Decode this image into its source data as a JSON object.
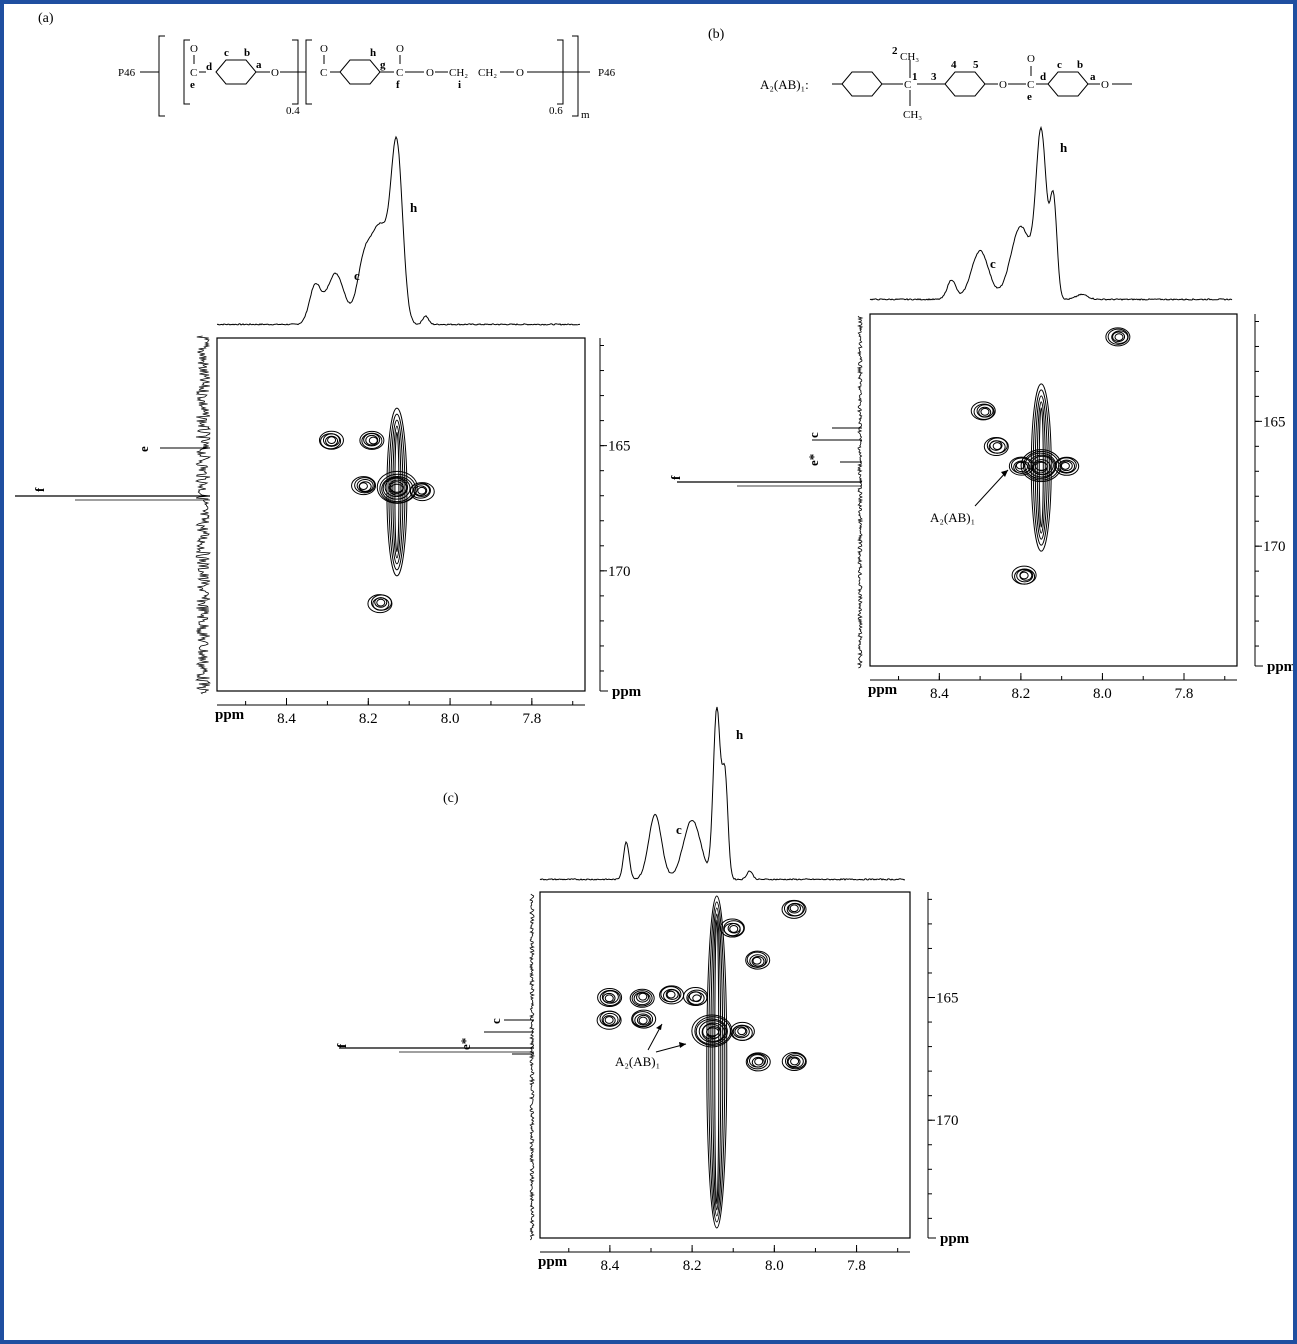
{
  "panels": [
    {
      "id": "a",
      "letter": "(a)",
      "structure": {
        "end_group": "P46",
        "atoms": [
          "O",
          "C",
          "e",
          "d",
          "c",
          "b",
          "a",
          "O",
          "O",
          "C",
          "h",
          "g",
          "O",
          "C",
          "f",
          "O",
          "CH₂",
          "i",
          "CH₂",
          "O"
        ],
        "subscripts": [
          "0.4",
          "0.6",
          "m"
        ]
      },
      "top_peaks": [
        "c",
        "h"
      ],
      "side_peaks": [
        "e",
        "f"
      ],
      "x_ticks": [
        "8.4",
        "8.2",
        "8.0",
        "7.8"
      ],
      "x_unit": "ppm",
      "y_ticks": [
        "165",
        "170"
      ],
      "y_unit": "ppm",
      "annotation": ""
    },
    {
      "id": "b",
      "letter": "(b)",
      "structure": {
        "prefix": "A₂(AB)₁:",
        "atoms": [
          "2",
          "CH₃",
          "1",
          "C",
          "CH₃",
          "3",
          "4",
          "5",
          "O",
          "O",
          "C",
          "e",
          "d",
          "c",
          "b",
          "a",
          "O"
        ]
      },
      "top_peaks": [
        "c",
        "h"
      ],
      "side_peaks": [
        "c",
        "e*",
        "f"
      ],
      "x_ticks": [
        "8.4",
        "8.2",
        "8.0",
        "7.8"
      ],
      "x_unit": "ppm",
      "y_ticks": [
        "165",
        "170"
      ],
      "y_unit": "ppm",
      "annotation": "A₂(AB)₁"
    },
    {
      "id": "c",
      "letter": "(c)",
      "top_peaks": [
        "c",
        "h"
      ],
      "side_peaks": [
        "c",
        "e*",
        "f"
      ],
      "x_ticks": [
        "8.4",
        "8.2",
        "8.0",
        "7.8"
      ],
      "x_unit": "ppm",
      "y_ticks": [
        "165",
        "170"
      ],
      "y_unit": "ppm",
      "annotation": "A₂(AB)₁"
    }
  ],
  "chart_data": [
    {
      "type": "heatmap",
      "title": "",
      "xlabel": "ppm",
      "ylabel": "ppm",
      "xlim": [
        8.57,
        7.67
      ],
      "ylim": [
        174.8,
        160.7
      ],
      "x_ticks": [
        8.4,
        8.2,
        8.0,
        7.8
      ],
      "y_ticks": [
        165,
        170
      ],
      "peaks": [
        {
          "x": 8.29,
          "y": 164.8
        },
        {
          "x": 8.19,
          "y": 164.8
        },
        {
          "x": 8.21,
          "y": 166.6
        },
        {
          "x": 8.13,
          "y": 166.7
        },
        {
          "x": 8.07,
          "y": 166.8
        },
        {
          "x": 8.17,
          "y": 171.3
        }
      ],
      "projection_labels": {
        "x": [
          "c",
          "h"
        ],
        "y": [
          "e",
          "f"
        ]
      }
    },
    {
      "type": "heatmap",
      "title": "",
      "xlabel": "ppm",
      "ylabel": "ppm",
      "xlim": [
        8.57,
        7.67
      ],
      "ylim": [
        174.8,
        160.7
      ],
      "x_ticks": [
        8.4,
        8.2,
        8.0,
        7.8
      ],
      "y_ticks": [
        165,
        170
      ],
      "peaks": [
        {
          "x": 8.29,
          "y": 164.6
        },
        {
          "x": 8.26,
          "y": 166.0
        },
        {
          "x": 8.2,
          "y": 166.8
        },
        {
          "x": 8.15,
          "y": 166.8
        },
        {
          "x": 8.09,
          "y": 166.8
        },
        {
          "x": 7.96,
          "y": 161.6
        },
        {
          "x": 8.19,
          "y": 171.2
        }
      ],
      "projection_labels": {
        "x": [
          "c",
          "h"
        ],
        "y": [
          "c",
          "e*",
          "f"
        ]
      }
    },
    {
      "type": "heatmap",
      "title": "",
      "xlabel": "ppm",
      "ylabel": "ppm",
      "xlim": [
        8.57,
        7.67
      ],
      "ylim": [
        174.8,
        160.7
      ],
      "x_ticks": [
        8.4,
        8.2,
        8.0,
        7.8
      ],
      "y_ticks": [
        165,
        170
      ],
      "peaks": [
        {
          "x": 8.4,
          "y": 165.0
        },
        {
          "x": 8.4,
          "y": 165.9
        },
        {
          "x": 8.32,
          "y": 165.0
        },
        {
          "x": 8.32,
          "y": 165.9
        },
        {
          "x": 8.25,
          "y": 164.9
        },
        {
          "x": 8.19,
          "y": 165.0
        },
        {
          "x": 8.15,
          "y": 166.4
        },
        {
          "x": 8.08,
          "y": 166.4
        },
        {
          "x": 8.04,
          "y": 163.5
        },
        {
          "x": 8.04,
          "y": 167.6
        },
        {
          "x": 7.95,
          "y": 167.6
        },
        {
          "x": 7.95,
          "y": 161.4
        },
        {
          "x": 8.1,
          "y": 162.2
        }
      ],
      "projection_labels": {
        "x": [
          "c",
          "h"
        ],
        "y": [
          "c",
          "e*",
          "f"
        ]
      }
    }
  ]
}
